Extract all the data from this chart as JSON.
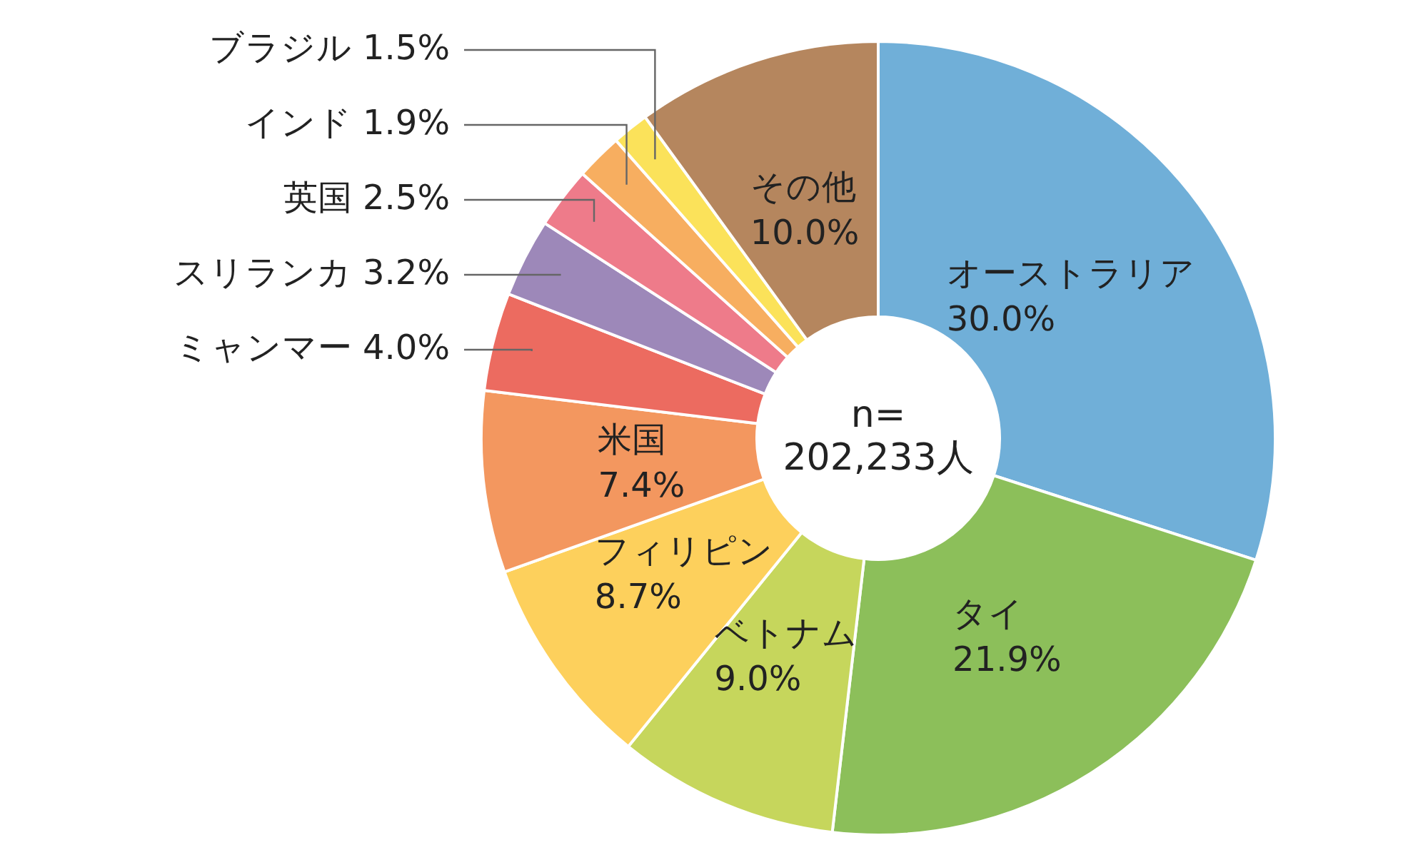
{
  "chart_data": {
    "type": "donut",
    "categories": [
      "オーストラリア",
      "タイ",
      "ベトナム",
      "フィリピン",
      "米国",
      "ミャンマー",
      "スリランカ",
      "英国",
      "インド",
      "ブラジル",
      "その他"
    ],
    "values": [
      30.0,
      21.9,
      9.0,
      8.7,
      7.4,
      4.0,
      3.2,
      2.5,
      1.9,
      1.5,
      10.0
    ],
    "value_labels": [
      "30.0%",
      "21.9%",
      "9.0%",
      "8.7%",
      "7.4%",
      "4.0%",
      "3.2%",
      "2.5%",
      "1.9%",
      "1.5%",
      "10.0%"
    ],
    "colors": [
      "#70afd8",
      "#8cbf5a",
      "#c6d65c",
      "#fdd05c",
      "#f3975f",
      "#ec6b60",
      "#9d88b9",
      "#ee7b8a",
      "#f7ae60",
      "#fbe25a",
      "#b5865e"
    ],
    "annotations": [
      "n=",
      "202,233人"
    ]
  }
}
